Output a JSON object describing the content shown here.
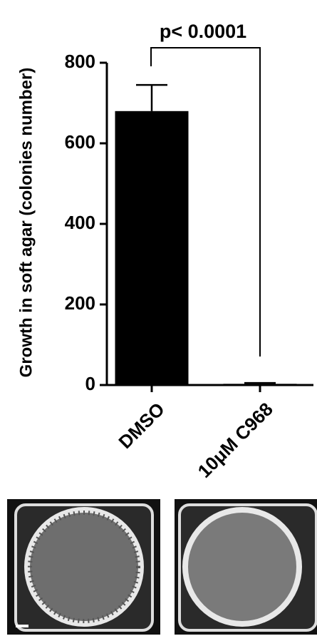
{
  "chart_data": {
    "type": "bar",
    "ylabel": "Growth in soft agar (colonies number)",
    "categories": [
      "DMSO",
      "10μM C968"
    ],
    "values": [
      680,
      3
    ],
    "errors": [
      65,
      2
    ],
    "color": "#000000",
    "ylim": [
      0,
      800
    ],
    "yticks": [
      0,
      200,
      400,
      600,
      800
    ],
    "annotation": "p< 0.0001"
  }
}
